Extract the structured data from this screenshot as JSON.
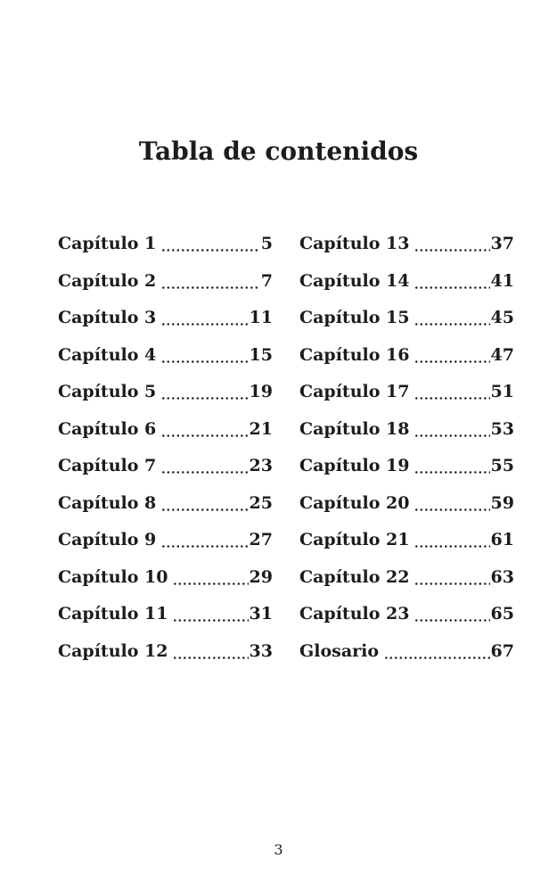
{
  "title": "Tabla de contenidos",
  "footer_page_number": "3",
  "toc": {
    "columns": [
      {
        "entries": [
          {
            "label": "Capítulo 1",
            "page": "5"
          },
          {
            "label": "Capítulo 2",
            "page": "7"
          },
          {
            "label": "Capítulo 3",
            "page": "11"
          },
          {
            "label": "Capítulo 4",
            "page": "15"
          },
          {
            "label": "Capítulo 5",
            "page": "19"
          },
          {
            "label": "Capítulo 6",
            "page": "21"
          },
          {
            "label": "Capítulo 7",
            "page": "23"
          },
          {
            "label": "Capítulo 8",
            "page": "25"
          },
          {
            "label": "Capítulo 9",
            "page": "27"
          },
          {
            "label": "Capítulo 10",
            "page": "29"
          },
          {
            "label": "Capítulo 11",
            "page": "31"
          },
          {
            "label": "Capítulo 12",
            "page": "33"
          }
        ]
      },
      {
        "entries": [
          {
            "label": "Capítulo 13",
            "page": "37"
          },
          {
            "label": "Capítulo 14",
            "page": "41"
          },
          {
            "label": "Capítulo 15",
            "page": "45"
          },
          {
            "label": "Capítulo 16",
            "page": "47"
          },
          {
            "label": "Capítulo 17",
            "page": "51"
          },
          {
            "label": "Capítulo 18",
            "page": "53"
          },
          {
            "label": "Capítulo 19",
            "page": "55"
          },
          {
            "label": "Capítulo 20",
            "page": "59"
          },
          {
            "label": "Capítulo 21",
            "page": "61"
          },
          {
            "label": "Capítulo 22",
            "page": "63"
          },
          {
            "label": "Capítulo 23",
            "page": "65"
          },
          {
            "label": "Glosario",
            "page": "67"
          }
        ]
      }
    ]
  }
}
